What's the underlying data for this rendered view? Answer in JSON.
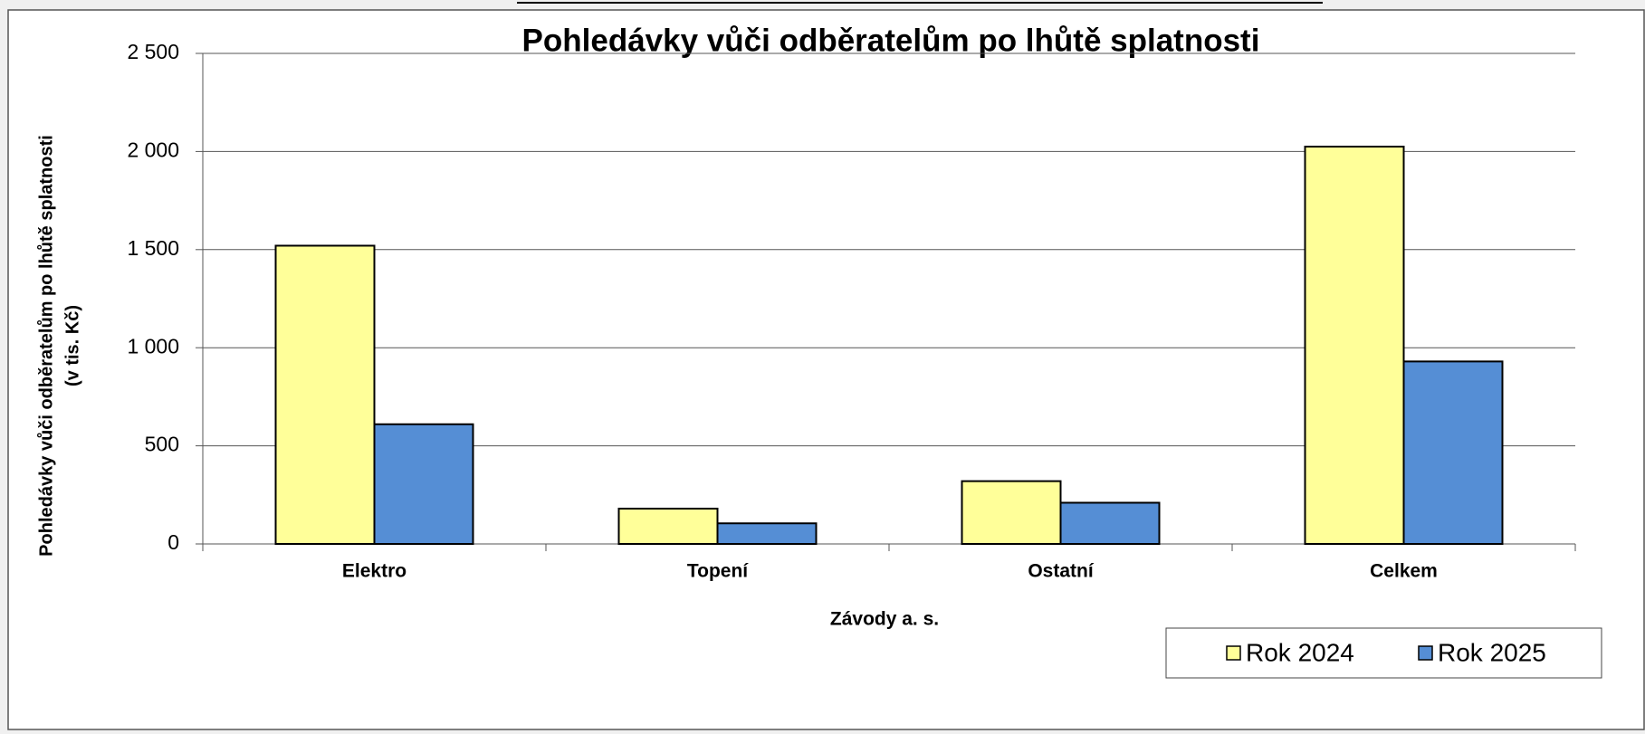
{
  "chart_data": {
    "type": "bar",
    "title": "Pohledávky vůči odběratelům po lhůtě splatnosti",
    "y_label": [
      "Pohledávky  vůči odběratelům po lhůtě splatnosti",
      "(v tis. Kč)"
    ],
    "x_label": "Závody a. s.",
    "categories": [
      "Elektro",
      "Topení",
      "Ostatní",
      "Celkem"
    ],
    "series": [
      {
        "name": "Rok 2024",
        "color": "#ffff99",
        "values": [
          1520,
          180,
          320,
          2025
        ]
      },
      {
        "name": "Rok 2025",
        "color": "#558ed5",
        "values": [
          610,
          105,
          210,
          930
        ]
      }
    ],
    "ylim": [
      0,
      2500
    ],
    "yticks": [
      0,
      500,
      {
        "value": 1000,
        "label": "1 000"
      },
      {
        "value": 1500,
        "label": "1 500"
      },
      {
        "value": 2000,
        "label": "2 000"
      },
      {
        "value": 2500,
        "label": "2 500"
      }
    ],
    "grid": true,
    "legend": "bottom-right"
  }
}
